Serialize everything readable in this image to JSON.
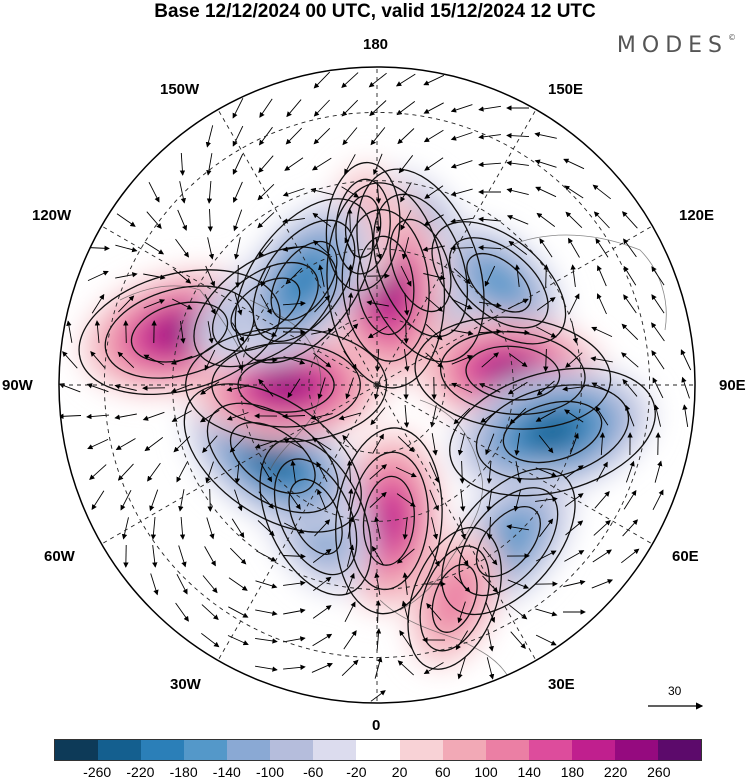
{
  "title": "Base 12/12/2024 00 UTC, valid 15/12/2024 12 UTC",
  "brand": "MODES",
  "brand_mark": "©",
  "longitude_labels": {
    "lon_180": "180",
    "lon_150w": "150W",
    "lon_150e": "150E",
    "lon_120w": "120W",
    "lon_120e": "120E",
    "lon_90w": "90W",
    "lon_90e": "90E",
    "lon_60w": "60W",
    "lon_60e": "60E",
    "lon_30w": "30W",
    "lon_30e": "30E",
    "lon_0": "0"
  },
  "reference_vector": {
    "value": "30"
  },
  "colorbar": {
    "colors": [
      "#0d3a58",
      "#145f8f",
      "#2b7fb8",
      "#5498c9",
      "#8aa9d4",
      "#b5bddc",
      "#dcdcee",
      "#ffffff",
      "#f8d2d6",
      "#f2a9b6",
      "#eb7fa4",
      "#dd4c9c",
      "#c01f8e",
      "#950a7f",
      "#5c0a6b"
    ],
    "ticks": [
      "-260",
      "-220",
      "-180",
      "-140",
      "-100",
      "-60",
      "-20",
      "20",
      "60",
      "100",
      "140",
      "180",
      "220",
      "260"
    ]
  },
  "anomalies": [
    {
      "lon": 160,
      "lat": 62,
      "value": -230
    },
    {
      "lon": 130,
      "lat": 55,
      "value": -140
    },
    {
      "lon": 175,
      "lat": 68,
      "value": 240
    },
    {
      "lon": 185,
      "lat": 55,
      "value": 80
    },
    {
      "lon": 95,
      "lat": 60,
      "value": 220
    },
    {
      "lon": 75,
      "lat": 50,
      "value": -250
    },
    {
      "lon": 40,
      "lat": 45,
      "value": -170
    },
    {
      "lon": 20,
      "lat": 40,
      "value": 120
    },
    {
      "lon": 5,
      "lat": 60,
      "value": 200
    },
    {
      "lon": 335,
      "lat": 58,
      "value": -160
    },
    {
      "lon": 305,
      "lat": 62,
      "value": -230
    },
    {
      "lon": 270,
      "lat": 70,
      "value": 230
    },
    {
      "lon": 255,
      "lat": 45,
      "value": 240
    },
    {
      "lon": 235,
      "lat": 60,
      "value": -150
    },
    {
      "lon": 215,
      "lat": 62,
      "value": -200
    }
  ]
}
